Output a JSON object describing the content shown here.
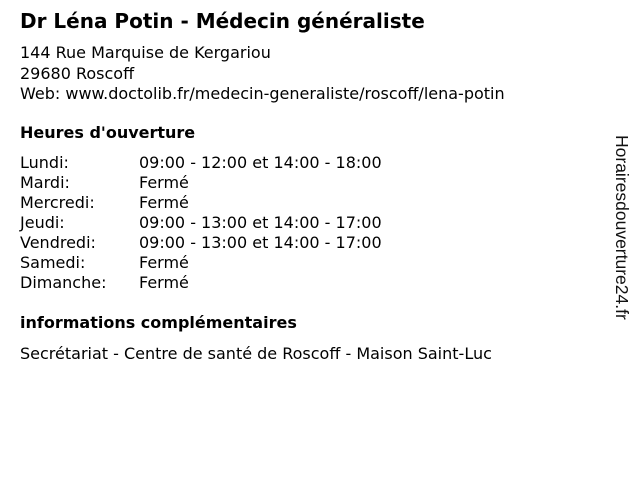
{
  "title": "Dr Léna Potin - Médecin généraliste",
  "address": {
    "street": "144 Rue Marquise de Kergariou",
    "city": "29680 Roscoff",
    "web": "Web: www.doctolib.fr/medecin-generaliste/roscoff/lena-potin"
  },
  "hours": {
    "heading": "Heures d'ouverture",
    "rows": [
      {
        "day": "Lundi:",
        "value": "09:00 - 12:00 et 14:00 - 18:00"
      },
      {
        "day": "Mardi:",
        "value": "Fermé"
      },
      {
        "day": "Mercredi:",
        "value": "Fermé"
      },
      {
        "day": "Jeudi:",
        "value": "09:00 - 13:00 et 14:00 - 17:00"
      },
      {
        "day": "Vendredi:",
        "value": "09:00 - 13:00 et 14:00 - 17:00"
      },
      {
        "day": "Samedi:",
        "value": "Fermé"
      },
      {
        "day": "Dimanche:",
        "value": "Fermé"
      }
    ]
  },
  "info": {
    "heading": "informations complémentaires",
    "text": "Secrétariat - Centre de santé de Roscoff - Maison Saint-Luc"
  },
  "watermark": "Horairesdouverture24.fr"
}
